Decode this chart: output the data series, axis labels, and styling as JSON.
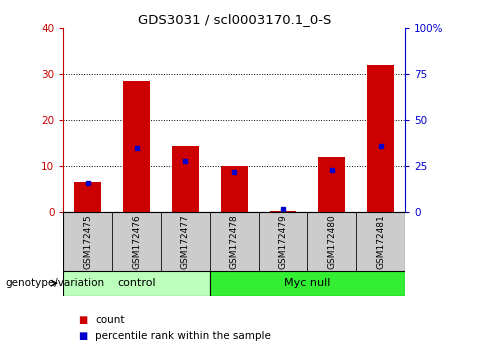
{
  "title": "GDS3031 / scl0003170.1_0-S",
  "samples": [
    "GSM172475",
    "GSM172476",
    "GSM172477",
    "GSM172478",
    "GSM172479",
    "GSM172480",
    "GSM172481"
  ],
  "red_counts": [
    6.5,
    28.5,
    14.5,
    10.0,
    0.3,
    12.0,
    32.0
  ],
  "blue_percentile": [
    16.0,
    35.0,
    28.0,
    22.0,
    2.0,
    23.0,
    36.0
  ],
  "groups": [
    {
      "label": "control",
      "start": 0,
      "end": 3,
      "color": "#bbffbb"
    },
    {
      "label": "Myc null",
      "start": 3,
      "end": 7,
      "color": "#33ee33"
    }
  ],
  "ylim_left": [
    0,
    40
  ],
  "ylim_right": [
    0,
    100
  ],
  "yticks_left": [
    0,
    10,
    20,
    30,
    40
  ],
  "yticks_right": [
    0,
    25,
    50,
    75,
    100
  ],
  "yticklabels_right": [
    "0",
    "25",
    "50",
    "75",
    "100%"
  ],
  "bar_width": 0.55,
  "red_color": "#cc0000",
  "blue_color": "#0000cc",
  "tick_area_color": "#cccccc",
  "legend_count_label": "count",
  "legend_pct_label": "percentile rank within the sample",
  "genotype_label": "genotype/variation"
}
